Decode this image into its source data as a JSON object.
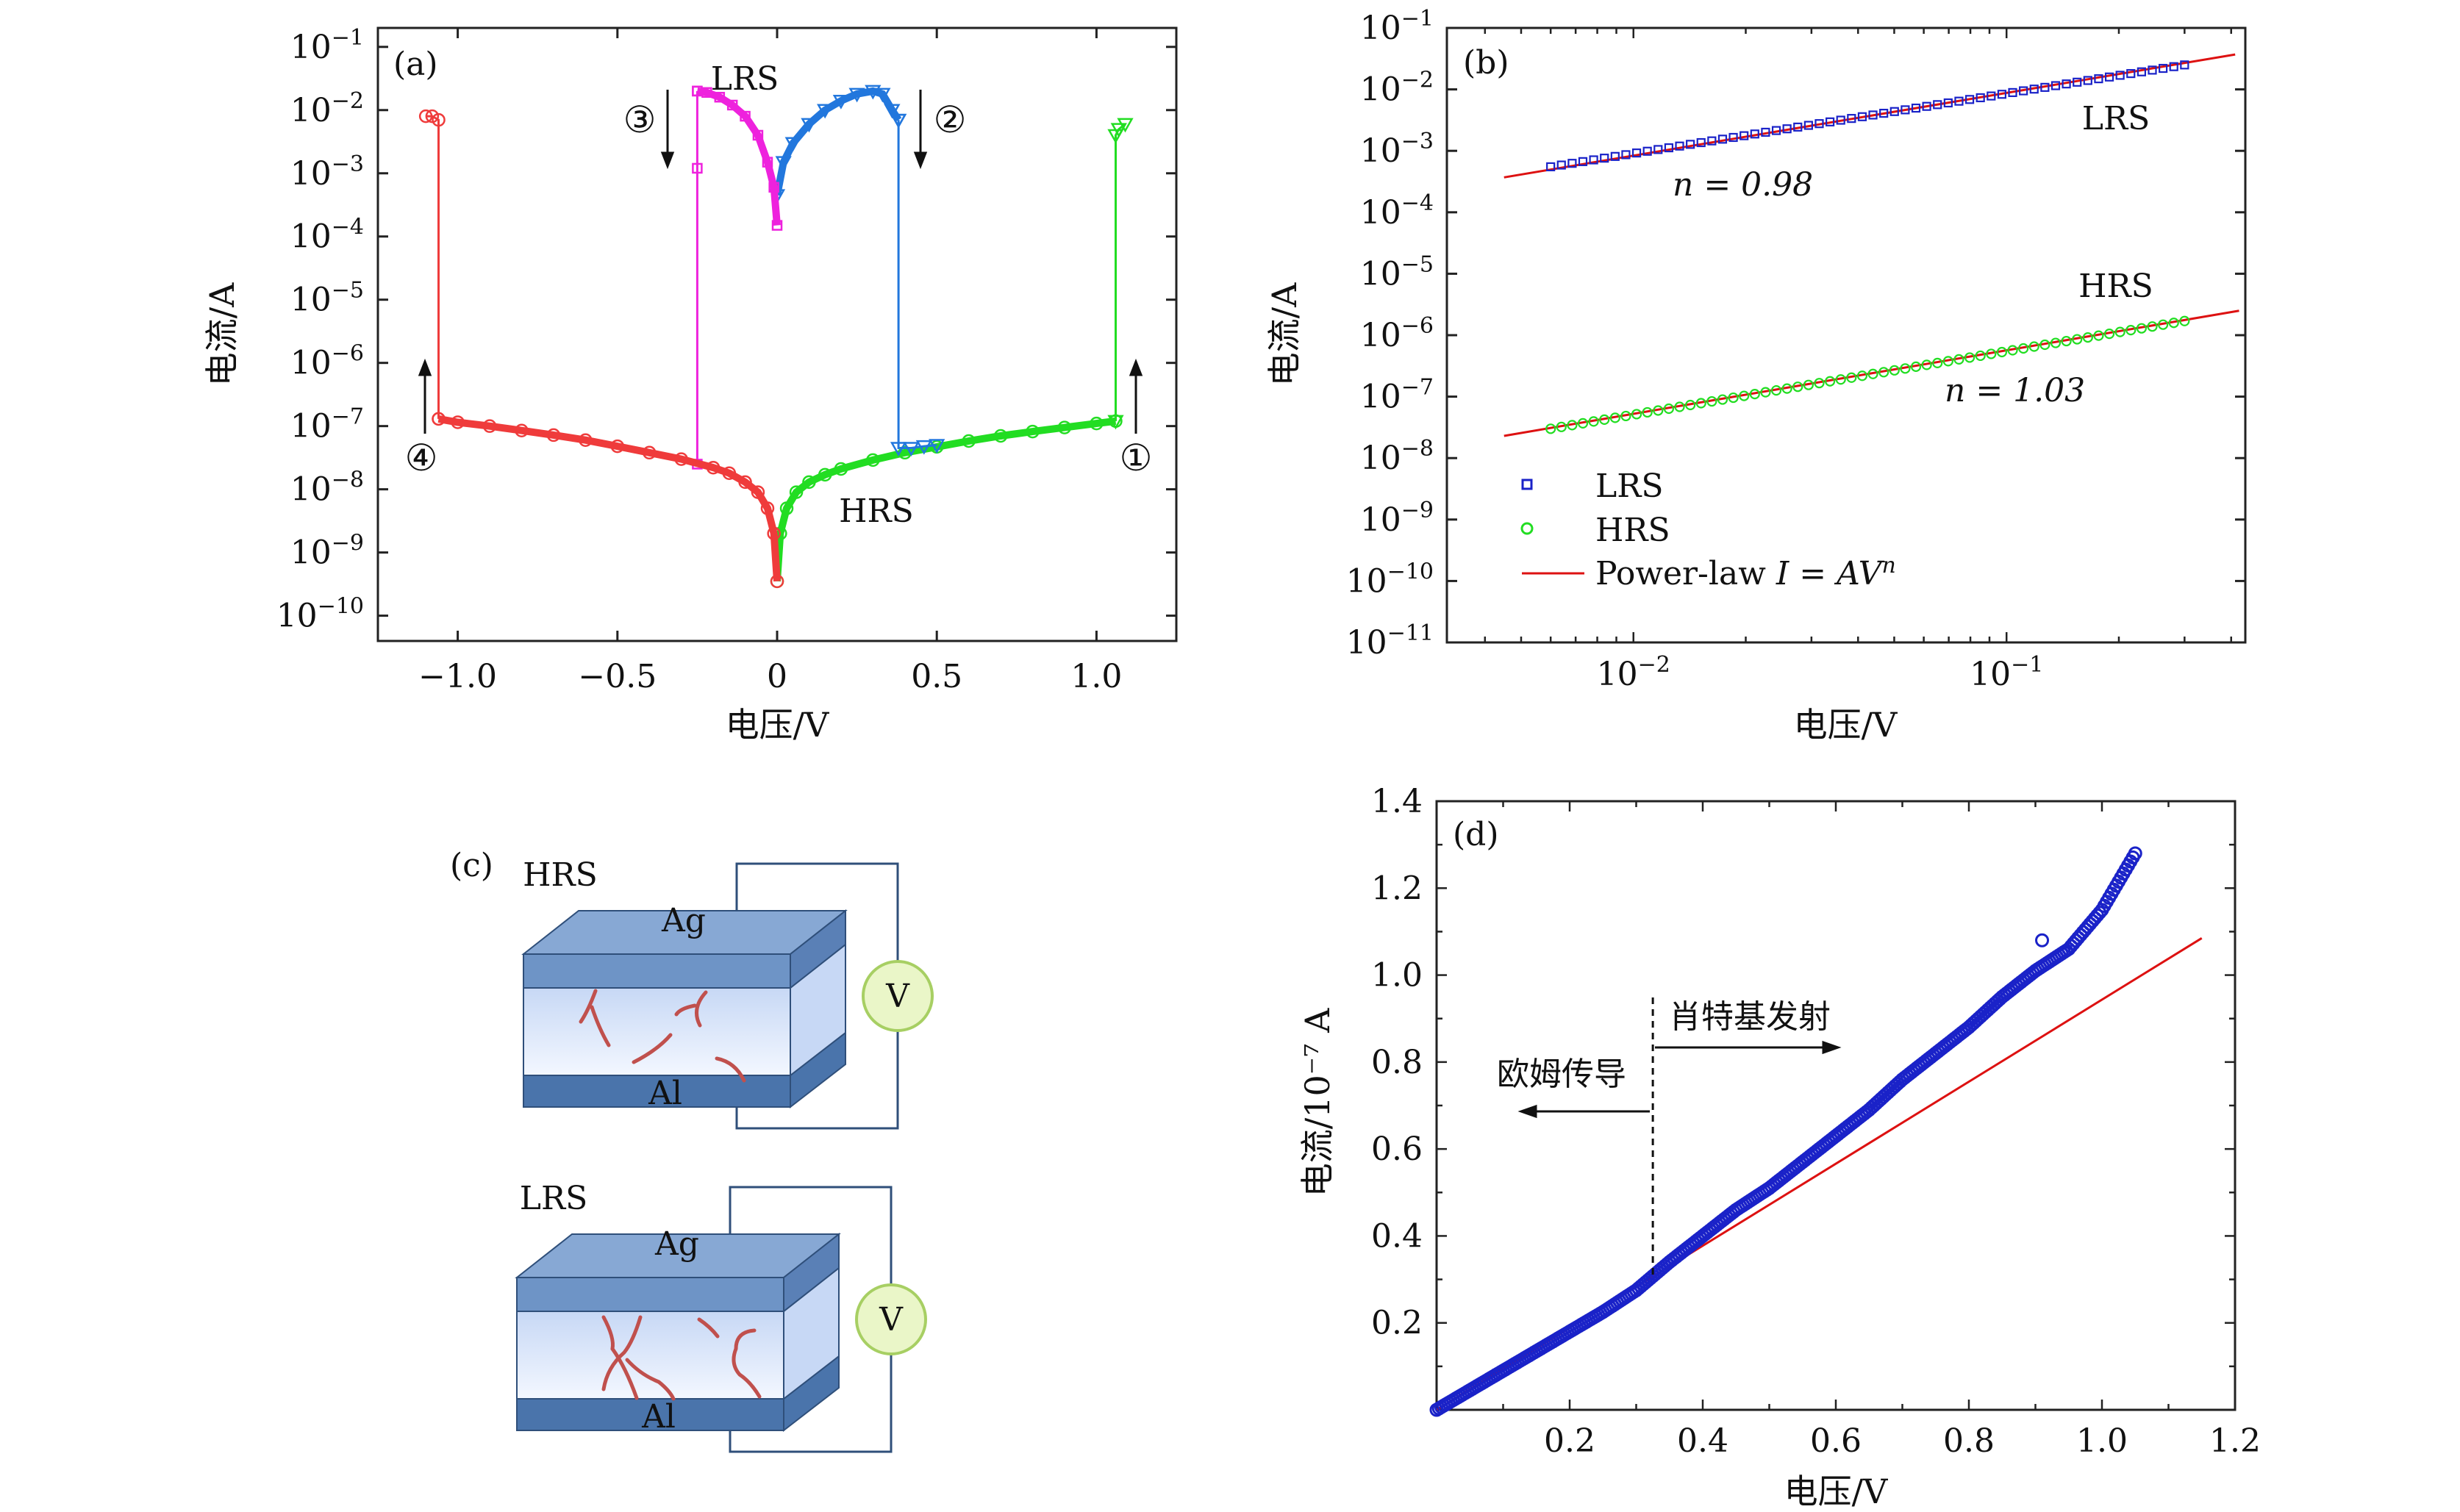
{
  "figure": {
    "panel_labels": {
      "a": "(a)",
      "b": "(b)",
      "c": "(c)",
      "d": "(d)"
    },
    "colors": {
      "axis": "#222222",
      "red": "#ef3b3b",
      "green": "#22dd22",
      "magenta": "#ee22dd",
      "blue": "#2277dd",
      "navy": "#1a22c8",
      "fit_red": "#dd1111",
      "layer_top": "#6e94c6",
      "layer_bottom": "#4a74ab",
      "layer_mid_top": "#c7d8f5",
      "layer_mid_bottom": "#f3f7ff",
      "filament": "#c0504d",
      "meter_fill": "#eaf6c8",
      "meter_stroke": "#a7cf63"
    }
  },
  "chart_data": [
    {
      "panel": "a",
      "type": "line",
      "yscale": "log",
      "xlabel": "电压/V",
      "ylabel": "电流/A",
      "xlim": [
        -1.25,
        1.25
      ],
      "ylim_exp": [
        -10.4,
        -0.7
      ],
      "xticks": [
        -1.0,
        -0.5,
        0,
        0.5,
        1.0
      ],
      "xtick_labels": [
        "−1.0",
        "−0.5",
        "0",
        "0.5",
        "1.0"
      ],
      "ytick_exponents": [
        -10,
        -9,
        -8,
        -7,
        -6,
        -5,
        -4,
        -3,
        -2,
        -1
      ],
      "annotations": {
        "lrs": "LRS",
        "hrs": "HRS",
        "step1": "①",
        "step2": "②",
        "step3": "③",
        "step4": "④"
      },
      "series": [
        {
          "color_key": "green",
          "marker": "circle",
          "x": [
            0.0,
            0.01,
            0.03,
            0.06,
            0.1,
            0.15,
            0.2,
            0.3,
            0.4,
            0.5,
            0.6,
            0.7,
            0.8,
            0.9,
            1.0,
            1.06
          ],
          "y": [
            3.5e-10,
            2e-09,
            5e-09,
            9e-09,
            1.3e-08,
            1.7e-08,
            2.1e-08,
            2.9e-08,
            3.8e-08,
            4.7e-08,
            5.8e-08,
            7e-08,
            8.2e-08,
            9.5e-08,
            1.1e-07,
            1.2e-07
          ]
        },
        {
          "color_key": "green",
          "marker": "triangle",
          "x": [
            1.06,
            1.06,
            1.07,
            1.09
          ],
          "y": [
            1.2e-07,
            0.004,
            0.005,
            0.006
          ]
        },
        {
          "color_key": "blue",
          "marker": "triangle",
          "x": [
            0.0,
            0.02,
            0.05,
            0.1,
            0.15,
            0.2,
            0.25,
            0.3,
            0.33,
            0.36,
            0.38
          ],
          "y": [
            0.00045,
            0.0015,
            0.003,
            0.006,
            0.01,
            0.014,
            0.018,
            0.02,
            0.018,
            0.01,
            0.007
          ]
        },
        {
          "color_key": "blue",
          "marker": "triangle",
          "x": [
            0.38,
            0.38,
            0.42,
            0.46,
            0.5
          ],
          "y": [
            0.007,
            4.5e-08,
            4.5e-08,
            4.8e-08,
            5e-08
          ]
        },
        {
          "color_key": "magenta",
          "marker": "square",
          "x": [
            -0.25,
            -0.22,
            -0.18,
            -0.14,
            -0.1,
            -0.06,
            -0.03,
            -0.01,
            0.0
          ],
          "y": [
            0.02,
            0.019,
            0.016,
            0.012,
            0.008,
            0.004,
            0.0015,
            0.0006,
            0.00015
          ]
        },
        {
          "color_key": "magenta",
          "marker": "square",
          "x": [
            -0.25,
            -0.25,
            -0.25
          ],
          "y": [
            0.02,
            0.0012,
            2.5e-08
          ]
        },
        {
          "color_key": "red",
          "marker": "circle",
          "x": [
            0.0,
            -0.01,
            -0.03,
            -0.06,
            -0.1,
            -0.15,
            -0.2,
            -0.3,
            -0.4,
            -0.5,
            -0.6,
            -0.7,
            -0.8,
            -0.9,
            -1.0,
            -1.06
          ],
          "y": [
            3.5e-10,
            2e-09,
            5e-09,
            9e-09,
            1.3e-08,
            1.8e-08,
            2.2e-08,
            3e-08,
            3.8e-08,
            4.8e-08,
            6e-08,
            7.2e-08,
            8.5e-08,
            1e-07,
            1.15e-07,
            1.3e-07
          ]
        },
        {
          "color_key": "red",
          "marker": "circle",
          "x": [
            -1.06,
            -1.06,
            -1.08,
            -1.1
          ],
          "y": [
            1.3e-07,
            0.007,
            0.008,
            0.008
          ]
        }
      ]
    },
    {
      "panel": "b",
      "type": "scatter",
      "xscale": "log",
      "yscale": "log",
      "xlabel": "电压/V",
      "ylabel": "电流/A",
      "xlim_exp": [
        -2.5,
        -0.36
      ],
      "ylim_exp": [
        -11,
        -1
      ],
      "xtick_exponents": [
        -2,
        -1
      ],
      "ytick_exponents": [
        -11,
        -10,
        -9,
        -8,
        -7,
        -6,
        -5,
        -4,
        -3,
        -2,
        -1
      ],
      "legend_position": "lower-left",
      "legend": [
        {
          "label": "LRS",
          "marker": "square",
          "color_key": "navy"
        },
        {
          "label": "HRS",
          "marker": "circle",
          "color_key": "green"
        },
        {
          "label_prefix": "Power-law ",
          "label_formula": "I = AV",
          "label_sup": "n",
          "marker": "line",
          "color_key": "fit_red"
        }
      ],
      "annotations": {
        "lrs": "LRS",
        "hrs": "HRS",
        "n_lrs": "n = 0.98",
        "n_hrs": "n = 1.03"
      },
      "series": [
        {
          "name": "LRS",
          "color_key": "navy",
          "marker": "square",
          "x_range": [
            0.006,
            0.3
          ],
          "y_range": [
            0.00055,
            0.025
          ]
        },
        {
          "name": "HRS",
          "color_key": "green",
          "marker": "circle",
          "x_range": [
            0.006,
            0.3
          ],
          "y_range": [
            3e-08,
            1.7e-06
          ]
        }
      ],
      "fits": [
        {
          "name": "LRS fit",
          "exponent": 0.98,
          "x_range": [
            0.0045,
            0.41
          ],
          "y_range": [
            0.00037,
            0.037
          ]
        },
        {
          "name": "HRS fit",
          "exponent": 1.03,
          "x_range": [
            0.0045,
            0.42
          ],
          "y_range": [
            2.3e-08,
            2.5e-06
          ]
        }
      ]
    },
    {
      "panel": "d",
      "type": "scatter",
      "xlabel": "电压/V",
      "ylabel": "电流/10⁻⁷ A",
      "xlim": [
        0,
        1.2
      ],
      "ylim": [
        0,
        1.4
      ],
      "xticks": [
        0.2,
        0.4,
        0.6,
        0.8,
        1.0,
        1.2
      ],
      "yticks": [
        0.2,
        0.4,
        0.6,
        0.8,
        1.0,
        1.2,
        1.4
      ],
      "divider_x": 0.325,
      "annotations": {
        "left_region": "欧姆传导",
        "right_region": "肖特基发射"
      },
      "series": [
        {
          "color_key": "navy",
          "marker": "circle",
          "x": [
            0.0,
            0.05,
            0.1,
            0.15,
            0.2,
            0.25,
            0.3,
            0.35,
            0.4,
            0.45,
            0.5,
            0.55,
            0.6,
            0.65,
            0.7,
            0.75,
            0.8,
            0.85,
            0.9,
            0.95,
            1.0,
            1.05
          ],
          "y": [
            0.0,
            0.045,
            0.09,
            0.135,
            0.18,
            0.225,
            0.275,
            0.34,
            0.4,
            0.46,
            0.51,
            0.57,
            0.63,
            0.69,
            0.76,
            0.82,
            0.88,
            0.95,
            1.01,
            1.06,
            1.15,
            1.28
          ]
        },
        {
          "color_key": "navy",
          "marker": "circle",
          "outlier": true,
          "x": [
            0.91
          ],
          "y": [
            1.08
          ]
        }
      ],
      "fits": [
        {
          "name": "ohmic fit",
          "x": [
            0.0,
            1.15
          ],
          "y": [
            0.0,
            1.085
          ]
        }
      ]
    }
  ],
  "schematic": {
    "hrs": {
      "state_label": "HRS",
      "top_electrode": "Ag",
      "bottom_electrode": "Al",
      "meter": "V"
    },
    "lrs": {
      "state_label": "LRS",
      "top_electrode": "Ag",
      "bottom_electrode": "Al",
      "meter": "V"
    }
  }
}
